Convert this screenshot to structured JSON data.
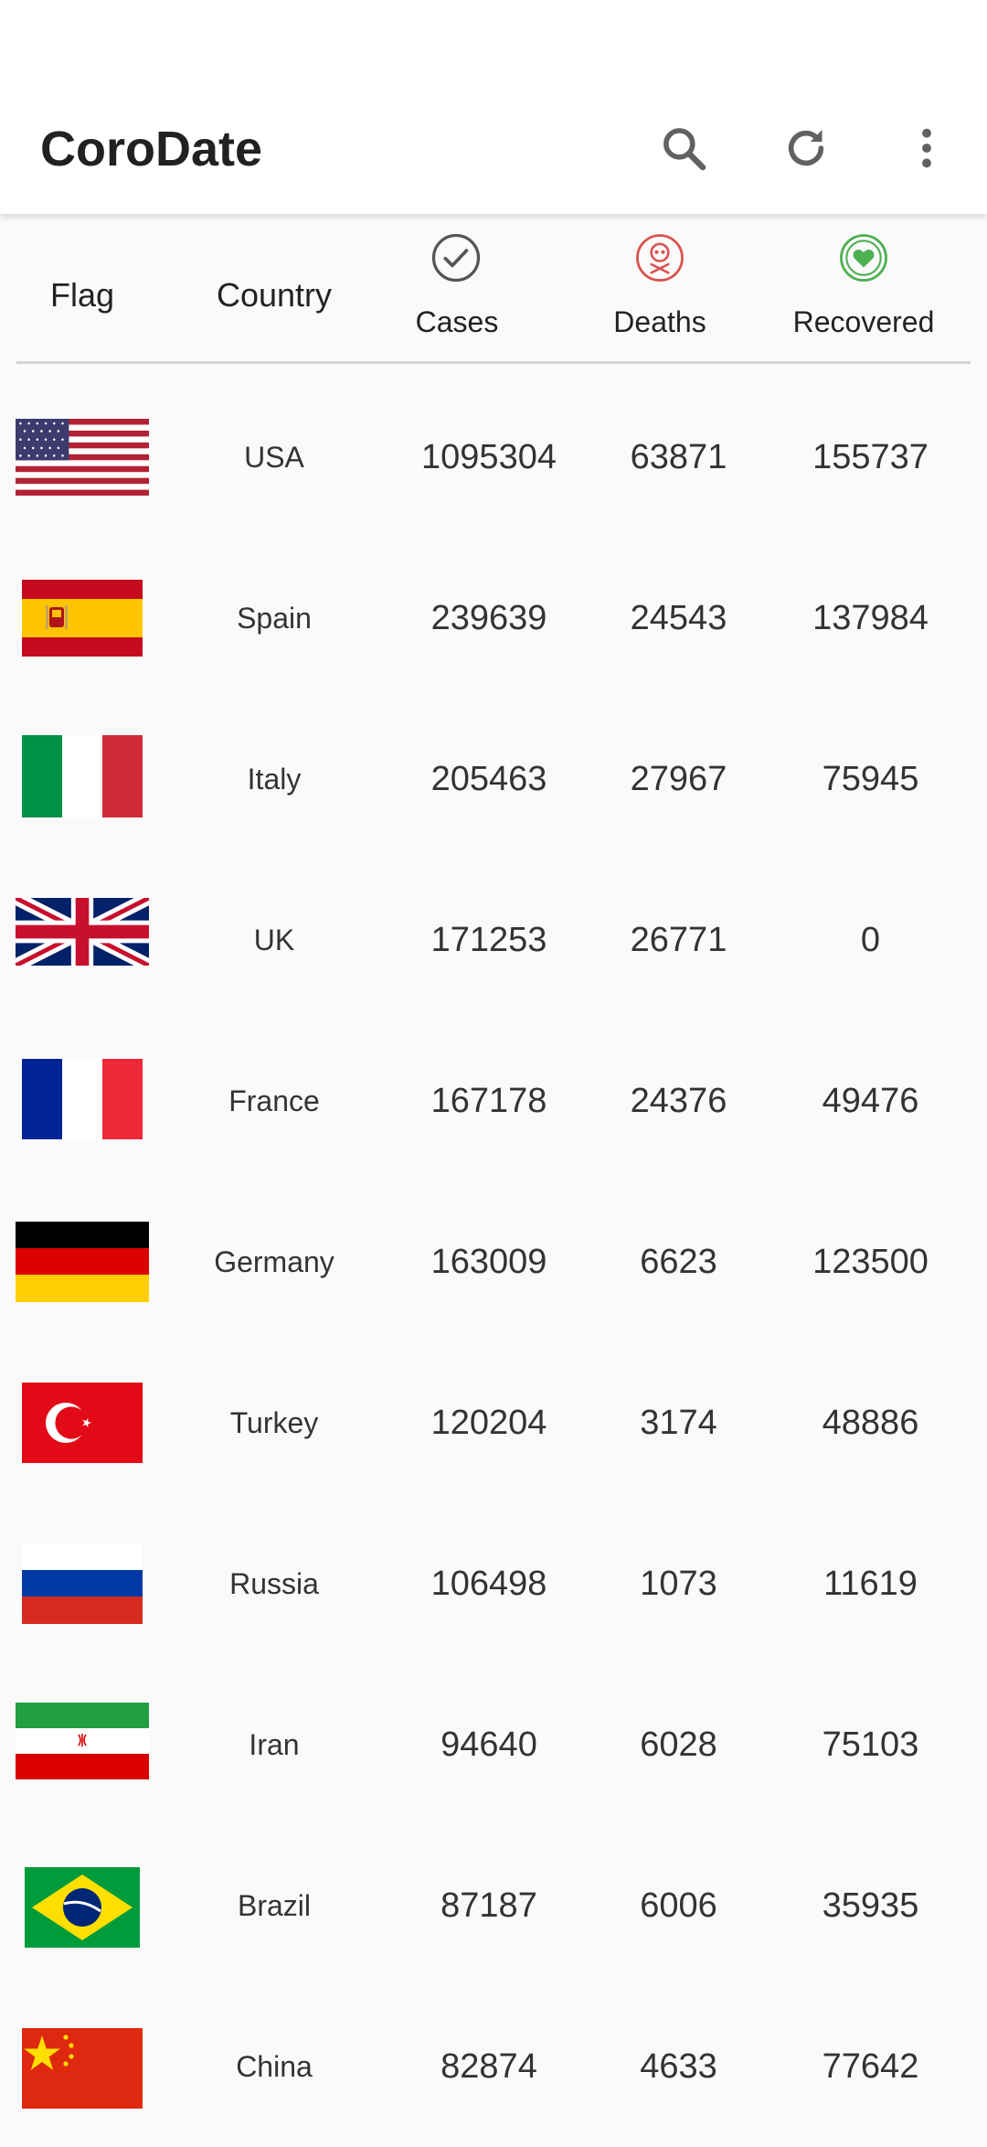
{
  "app": {
    "title": "CoroDate",
    "actions": [
      {
        "icon": "search-icon"
      },
      {
        "icon": "refresh-icon"
      },
      {
        "icon": "more-vert-icon"
      }
    ]
  },
  "header": {
    "flag": "Flag",
    "country": "Country",
    "cases": "Cases",
    "deaths": "Deaths",
    "recovered": "Recovered",
    "cases_icon": "check-circle-icon",
    "deaths_icon": "skull-icon",
    "recovered_icon": "heart-icon"
  },
  "colors": {
    "deaths_icon": "#d9534f",
    "recovered_icon": "#4caf50",
    "cases_icon": "#555555"
  },
  "rows": [
    {
      "country": "USA",
      "cases": "1095304",
      "deaths": "63871",
      "recovered": "155737",
      "flag": "usa-flag"
    },
    {
      "country": "Spain",
      "cases": "239639",
      "deaths": "24543",
      "recovered": "137984",
      "flag": "spain-flag"
    },
    {
      "country": "Italy",
      "cases": "205463",
      "deaths": "27967",
      "recovered": "75945",
      "flag": "italy-flag"
    },
    {
      "country": "UK",
      "cases": "171253",
      "deaths": "26771",
      "recovered": "0",
      "flag": "uk-flag"
    },
    {
      "country": "France",
      "cases": "167178",
      "deaths": "24376",
      "recovered": "49476",
      "flag": "france-flag"
    },
    {
      "country": "Germany",
      "cases": "163009",
      "deaths": "6623",
      "recovered": "123500",
      "flag": "germany-flag"
    },
    {
      "country": "Turkey",
      "cases": "120204",
      "deaths": "3174",
      "recovered": "48886",
      "flag": "turkey-flag"
    },
    {
      "country": "Russia",
      "cases": "106498",
      "deaths": "1073",
      "recovered": "11619",
      "flag": "russia-flag"
    },
    {
      "country": "Iran",
      "cases": "94640",
      "deaths": "6028",
      "recovered": "75103",
      "flag": "iran-flag"
    },
    {
      "country": "Brazil",
      "cases": "87187",
      "deaths": "6006",
      "recovered": "35935",
      "flag": "brazil-flag"
    },
    {
      "country": "China",
      "cases": "82874",
      "deaths": "4633",
      "recovered": "77642",
      "flag": "china-flag"
    }
  ]
}
